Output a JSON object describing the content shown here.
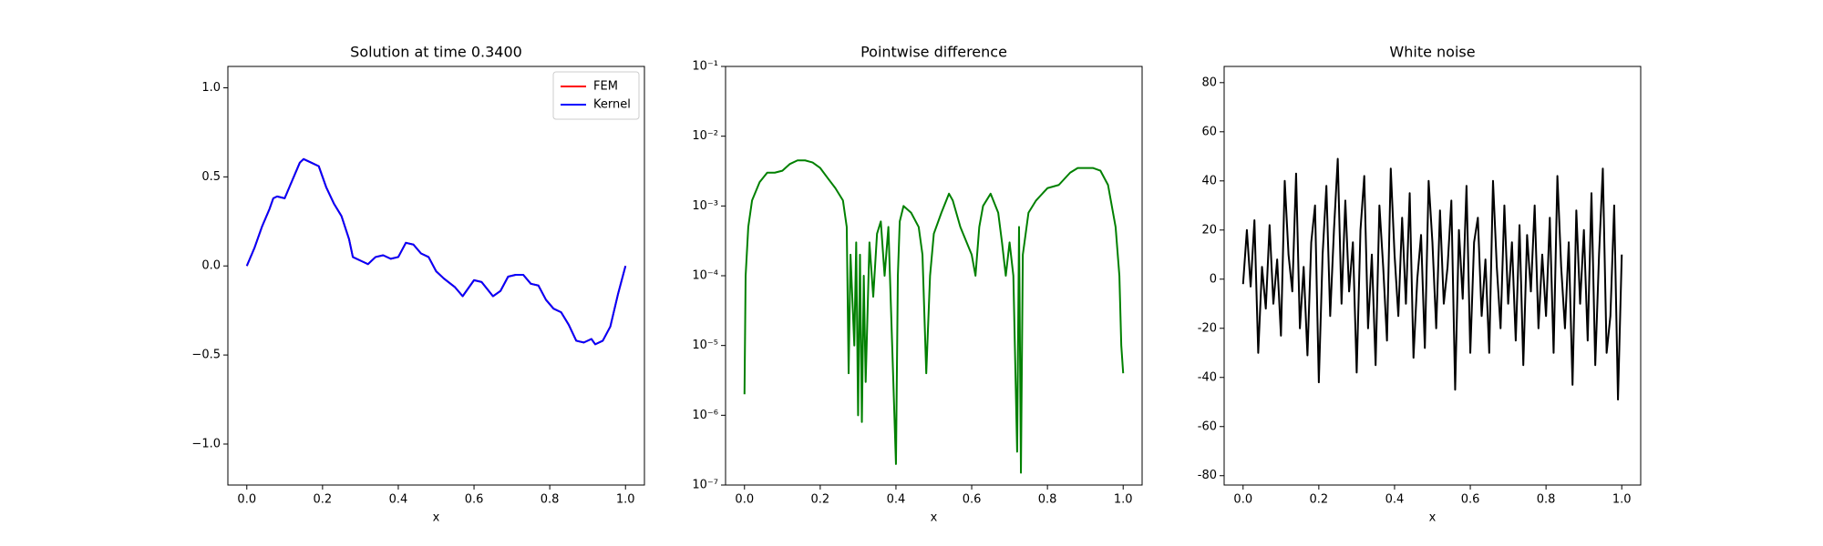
{
  "chart_data": [
    {
      "type": "line",
      "title": "Solution at time 0.3400",
      "xlabel": "x",
      "legend": "upper right",
      "x": [
        0,
        0.02,
        0.04,
        0.06,
        0.07,
        0.08,
        0.1,
        0.12,
        0.14,
        0.15,
        0.17,
        0.19,
        0.21,
        0.23,
        0.25,
        0.27,
        0.28,
        0.3,
        0.32,
        0.34,
        0.36,
        0.38,
        0.4,
        0.42,
        0.44,
        0.46,
        0.48,
        0.5,
        0.52,
        0.55,
        0.57,
        0.6,
        0.62,
        0.65,
        0.67,
        0.69,
        0.71,
        0.73,
        0.75,
        0.77,
        0.79,
        0.81,
        0.83,
        0.85,
        0.87,
        0.89,
        0.91,
        0.92,
        0.94,
        0.96,
        0.98,
        1.0
      ],
      "series": [
        {
          "name": "FEM",
          "color": "#ff0000",
          "values": [
            0,
            0.1,
            0.22,
            0.32,
            0.38,
            0.39,
            0.38,
            0.48,
            0.58,
            0.6,
            0.58,
            0.56,
            0.44,
            0.35,
            0.28,
            0.15,
            0.05,
            0.03,
            0.01,
            0.05,
            0.06,
            0.04,
            0.05,
            0.13,
            0.12,
            0.07,
            0.05,
            -0.03,
            -0.07,
            -0.12,
            -0.17,
            -0.08,
            -0.09,
            -0.17,
            -0.14,
            -0.06,
            -0.05,
            -0.05,
            -0.1,
            -0.11,
            -0.19,
            -0.24,
            -0.26,
            -0.33,
            -0.42,
            -0.43,
            -0.41,
            -0.44,
            -0.42,
            -0.34,
            -0.16,
            0
          ]
        },
        {
          "name": "Kernel",
          "color": "#0000ff",
          "values": [
            0,
            0.1,
            0.22,
            0.32,
            0.38,
            0.39,
            0.38,
            0.48,
            0.58,
            0.6,
            0.58,
            0.56,
            0.44,
            0.35,
            0.28,
            0.15,
            0.05,
            0.03,
            0.01,
            0.05,
            0.06,
            0.04,
            0.05,
            0.13,
            0.12,
            0.07,
            0.05,
            -0.03,
            -0.07,
            -0.12,
            -0.17,
            -0.08,
            -0.09,
            -0.17,
            -0.14,
            -0.06,
            -0.05,
            -0.05,
            -0.1,
            -0.11,
            -0.19,
            -0.24,
            -0.26,
            -0.33,
            -0.42,
            -0.43,
            -0.41,
            -0.44,
            -0.42,
            -0.34,
            -0.16,
            0
          ]
        }
      ],
      "xlim": [
        -0.05,
        1.05
      ],
      "ylim": [
        -1.23,
        1.12
      ],
      "xticks": [
        {
          "value": 0,
          "label": "0.0"
        },
        0.2,
        0.4,
        0.6,
        0.8,
        {
          "value": 1,
          "label": "1.0"
        }
      ],
      "yticks": [
        {
          "value": -1,
          "label": "−1.0"
        },
        {
          "value": -0.5,
          "label": "−0.5"
        },
        {
          "value": 0,
          "label": "0.0"
        },
        0.5,
        {
          "value": 1,
          "label": "1.0"
        }
      ]
    },
    {
      "type": "line",
      "title": "Pointwise difference",
      "xlabel": "x",
      "yscale": "log",
      "x": [
        0,
        0.003,
        0.01,
        0.02,
        0.04,
        0.06,
        0.08,
        0.1,
        0.12,
        0.14,
        0.16,
        0.18,
        0.2,
        0.22,
        0.24,
        0.26,
        0.27,
        0.275,
        0.28,
        0.29,
        0.295,
        0.3,
        0.305,
        0.31,
        0.315,
        0.32,
        0.33,
        0.34,
        0.35,
        0.36,
        0.37,
        0.38,
        0.39,
        0.4,
        0.405,
        0.41,
        0.42,
        0.44,
        0.46,
        0.47,
        0.48,
        0.49,
        0.5,
        0.52,
        0.54,
        0.55,
        0.57,
        0.6,
        0.61,
        0.62,
        0.63,
        0.65,
        0.67,
        0.68,
        0.69,
        0.7,
        0.71,
        0.72,
        0.725,
        0.73,
        0.735,
        0.75,
        0.77,
        0.8,
        0.83,
        0.86,
        0.88,
        0.9,
        0.92,
        0.94,
        0.96,
        0.98,
        0.99,
        0.995,
        1.0
      ],
      "series": [
        {
          "color": "#008000",
          "values": [
            2e-06,
            0.0001,
            0.0005,
            0.0012,
            0.0022,
            0.003,
            0.003,
            0.0032,
            0.004,
            0.0045,
            0.0045,
            0.0042,
            0.0035,
            0.0025,
            0.0018,
            0.0012,
            0.0005,
            4e-06,
            0.0002,
            1e-05,
            0.0003,
            1e-06,
            0.0002,
            8e-07,
            0.0001,
            3e-06,
            0.0003,
            5e-05,
            0.0004,
            0.0006,
            0.0001,
            0.0005,
            1e-05,
            2e-07,
            0.0001,
            0.0006,
            0.001,
            0.0008,
            0.0005,
            0.0002,
            4e-06,
            0.0001,
            0.0004,
            0.0008,
            0.0015,
            0.0012,
            0.0005,
            0.0002,
            0.0001,
            0.0005,
            0.001,
            0.0015,
            0.0008,
            0.0003,
            0.0001,
            0.0003,
            0.0001,
            3e-07,
            0.0005,
            1.5e-07,
            0.0002,
            0.0008,
            0.0012,
            0.0018,
            0.002,
            0.003,
            0.0035,
            0.0035,
            0.0035,
            0.0032,
            0.002,
            0.0005,
            0.0001,
            1e-05,
            4e-06
          ]
        }
      ],
      "xlim": [
        -0.05,
        1.05
      ],
      "ylim": [
        1e-07,
        0.1
      ],
      "xticks": [
        {
          "value": 0,
          "label": "0.0"
        },
        0.2,
        0.4,
        0.6,
        0.8,
        {
          "value": 1,
          "label": "1.0"
        }
      ],
      "yticks": [
        {
          "value": 1e-07,
          "label": "10⁻⁷"
        },
        {
          "value": 1e-06,
          "label": "10⁻⁶"
        },
        {
          "value": 1e-05,
          "label": "10⁻⁵"
        },
        {
          "value": 0.0001,
          "label": "10⁻⁴"
        },
        {
          "value": 0.001,
          "label": "10⁻³"
        },
        {
          "value": 0.01,
          "label": "10⁻²"
        },
        {
          "value": 0.1,
          "label": "10⁻¹"
        }
      ]
    },
    {
      "type": "line",
      "title": "White noise",
      "xlabel": "x",
      "x": [
        0,
        0.01,
        0.02,
        0.03,
        0.04,
        0.05,
        0.06,
        0.07,
        0.08,
        0.09,
        0.1,
        0.11,
        0.12,
        0.13,
        0.14,
        0.15,
        0.16,
        0.17,
        0.18,
        0.19,
        0.2,
        0.21,
        0.22,
        0.23,
        0.24,
        0.25,
        0.26,
        0.27,
        0.28,
        0.29,
        0.3,
        0.31,
        0.32,
        0.33,
        0.34,
        0.35,
        0.36,
        0.37,
        0.38,
        0.39,
        0.4,
        0.41,
        0.42,
        0.43,
        0.44,
        0.45,
        0.46,
        0.47,
        0.48,
        0.49,
        0.5,
        0.51,
        0.52,
        0.53,
        0.54,
        0.55,
        0.56,
        0.57,
        0.58,
        0.59,
        0.6,
        0.61,
        0.62,
        0.63,
        0.64,
        0.65,
        0.66,
        0.67,
        0.68,
        0.69,
        0.7,
        0.71,
        0.72,
        0.73,
        0.74,
        0.75,
        0.76,
        0.77,
        0.78,
        0.79,
        0.8,
        0.81,
        0.82,
        0.83,
        0.84,
        0.85,
        0.86,
        0.87,
        0.88,
        0.89,
        0.9,
        0.91,
        0.92,
        0.93,
        0.94,
        0.95,
        0.96,
        0.97,
        0.98,
        0.99,
        1.0
      ],
      "series": [
        {
          "color": "#000000",
          "values": [
            -2,
            20,
            -3,
            24,
            -30,
            5,
            -12,
            22,
            -10,
            8,
            -23,
            40,
            10,
            -5,
            43,
            -20,
            5,
            -31,
            15,
            30,
            -42,
            10,
            38,
            -15,
            20,
            49,
            -10,
            32,
            -5,
            15,
            -38,
            20,
            42,
            -20,
            10,
            -35,
            30,
            5,
            -25,
            45,
            10,
            -15,
            25,
            -10,
            35,
            -32,
            0,
            18,
            -28,
            40,
            15,
            -20,
            28,
            -10,
            5,
            32,
            -45,
            20,
            -8,
            38,
            -30,
            15,
            25,
            -15,
            8,
            -30,
            40,
            5,
            -20,
            30,
            -10,
            15,
            -25,
            22,
            -35,
            18,
            -5,
            30,
            -20,
            10,
            -15,
            25,
            -30,
            42,
            5,
            -20,
            15,
            -43,
            28,
            -10,
            20,
            -25,
            35,
            -35,
            10,
            45,
            -30,
            -15,
            30,
            -49,
            10
          ]
        }
      ],
      "xlim": [
        -0.05,
        1.05
      ],
      "ylim": [
        -83.8,
        86.6
      ],
      "xticks": [
        {
          "value": 0,
          "label": "0.0"
        },
        0.2,
        0.4,
        0.6,
        0.8,
        {
          "value": 1,
          "label": "1.0"
        }
      ],
      "yticks": [
        -80,
        -60,
        -40,
        -20,
        0,
        20,
        40,
        60,
        80
      ]
    }
  ]
}
